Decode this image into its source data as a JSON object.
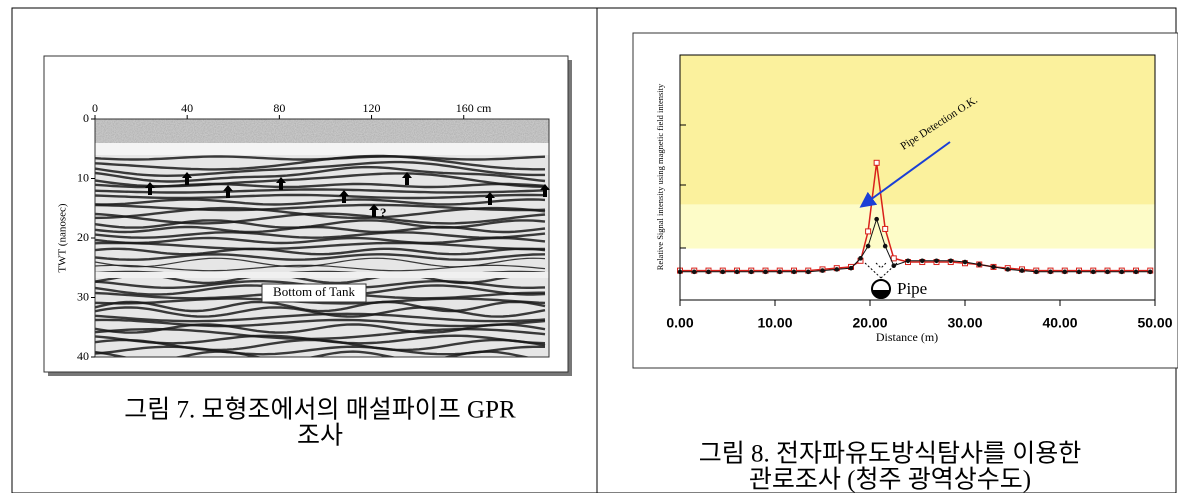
{
  "figure7": {
    "xticks": [
      0,
      40,
      80,
      120,
      {
        "value": 160,
        "label": "160 cm"
      }
    ],
    "xlim": [
      0,
      197
    ],
    "yticks": [
      0,
      10,
      20,
      30,
      40
    ],
    "ylim": [
      0,
      40
    ],
    "ylabel": "TWT (nanosec)",
    "annotation": "Bottom of Tank",
    "mark_text": "?",
    "caption": [
      "그림 7. 모형조에서의 매설파이프 GPR",
      "조사"
    ]
  },
  "figure8": {
    "xticks": [
      {
        "value": 0,
        "label": "0.00"
      },
      {
        "value": 10,
        "label": "10.00"
      },
      {
        "value": 20,
        "label": "20.00"
      },
      {
        "value": 30,
        "label": "30.00"
      },
      {
        "value": 40,
        "label": "40.00"
      },
      {
        "value": 50,
        "label": "50.00"
      }
    ],
    "xlim": [
      0,
      50
    ],
    "ylim": [
      0,
      100
    ],
    "xlabel": "Distance (m)",
    "ylabel": "Relative Signal intensity using magnetic field intensity",
    "bands": [
      {
        "from": 39,
        "to": 100,
        "color": "#fbf19d"
      },
      {
        "from": 21,
        "to": 39,
        "color": "#fdfcc8"
      }
    ],
    "x": [
      0,
      1.5,
      3,
      4.5,
      6,
      7.5,
      9,
      10.5,
      12,
      13.5,
      15,
      16.5,
      18,
      19,
      19.8,
      20.7,
      21.6,
      22.5,
      24,
      25.5,
      27,
      28.5,
      30,
      31.5,
      33,
      34.5,
      36,
      37.5,
      39,
      40.5,
      42,
      43.5,
      45,
      46.5,
      48,
      49.5
    ],
    "series": [
      {
        "color": "#d8201a",
        "values": [
          12,
          12,
          12,
          12,
          12,
          12,
          12,
          12,
          12,
          12,
          12.5,
          13,
          13.5,
          16,
          28,
          56,
          29,
          17,
          15.5,
          15.5,
          15.5,
          15.5,
          15,
          14.5,
          13.5,
          13,
          12.5,
          12,
          12,
          12,
          12,
          12,
          12,
          12,
          12,
          12
        ]
      },
      {
        "color": "#111111",
        "values": [
          11.5,
          11.5,
          11.5,
          11.5,
          11.5,
          11.5,
          11.5,
          11.5,
          11.5,
          11.5,
          12,
          12.5,
          13,
          17,
          22,
          33,
          22,
          14,
          16,
          16,
          16,
          16,
          15.5,
          14.5,
          13.5,
          12.5,
          12,
          11.5,
          11.5,
          11.5,
          11.5,
          11.5,
          11.5,
          11.5,
          11.5,
          11.5
        ]
      }
    ],
    "annotation": "Pipe Detection O.K.",
    "pipe_label": "Pipe",
    "caption": [
      "그림 8. 전자파유도방식탐사를 이용한",
      "관로조사 (청주 광역상수도)"
    ]
  }
}
